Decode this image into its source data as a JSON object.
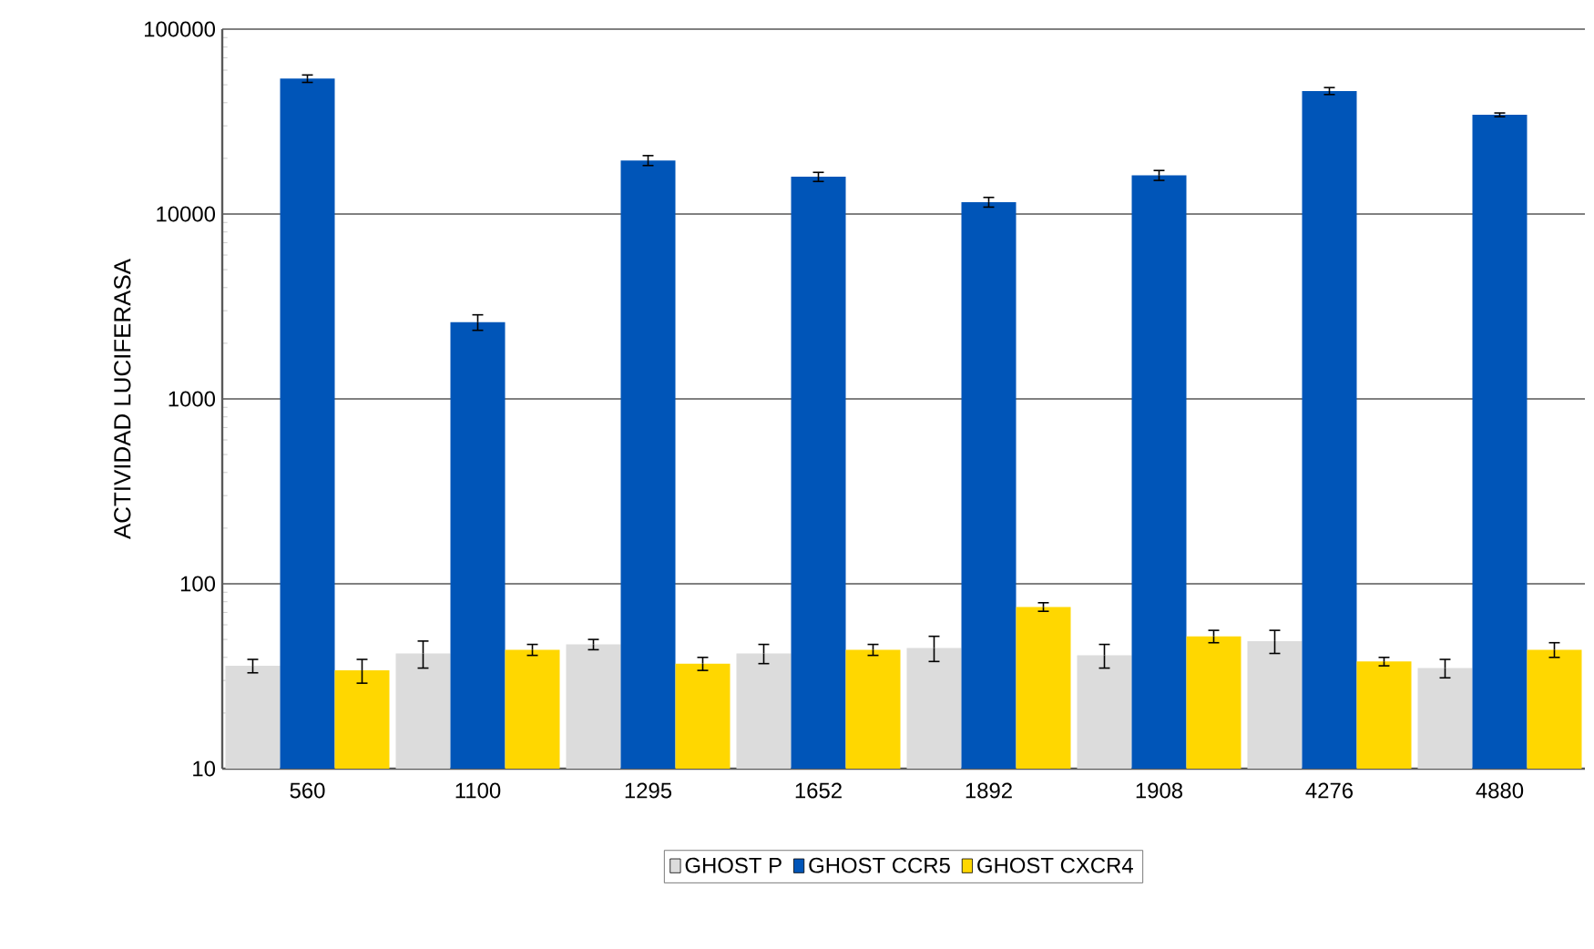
{
  "chart_data": {
    "type": "bar",
    "ylabel": "ACTIVIDAD LUCIFERASA",
    "categories": [
      "560",
      "1100",
      "1295",
      "1652",
      "1892",
      "1908",
      "4276",
      "4880"
    ],
    "series": [
      {
        "name": "GHOST P",
        "color": "#dcdcdc",
        "values": [
          36,
          42,
          47,
          42,
          45,
          41,
          49,
          35
        ],
        "errors": [
          3,
          7,
          3,
          5,
          7,
          6,
          7,
          4
        ]
      },
      {
        "name": "GHOST CCR5",
        "color": "#0055b8",
        "values": [
          54000,
          2600,
          19500,
          15900,
          11600,
          16200,
          46300,
          34400
        ],
        "errors": [
          2500,
          250,
          1200,
          900,
          700,
          1000,
          2000,
          800
        ]
      },
      {
        "name": "GHOST CXCR4",
        "color": "#ffd700",
        "values": [
          34,
          44,
          37,
          44,
          75,
          52,
          38,
          44
        ],
        "errors": [
          5,
          3,
          3,
          3,
          4,
          4,
          2,
          4
        ]
      }
    ],
    "log": true,
    "ylim": [
      10,
      100000
    ],
    "yticks": [
      10,
      100,
      1000,
      10000,
      100000
    ],
    "grid": "y",
    "legend": "bottom"
  }
}
